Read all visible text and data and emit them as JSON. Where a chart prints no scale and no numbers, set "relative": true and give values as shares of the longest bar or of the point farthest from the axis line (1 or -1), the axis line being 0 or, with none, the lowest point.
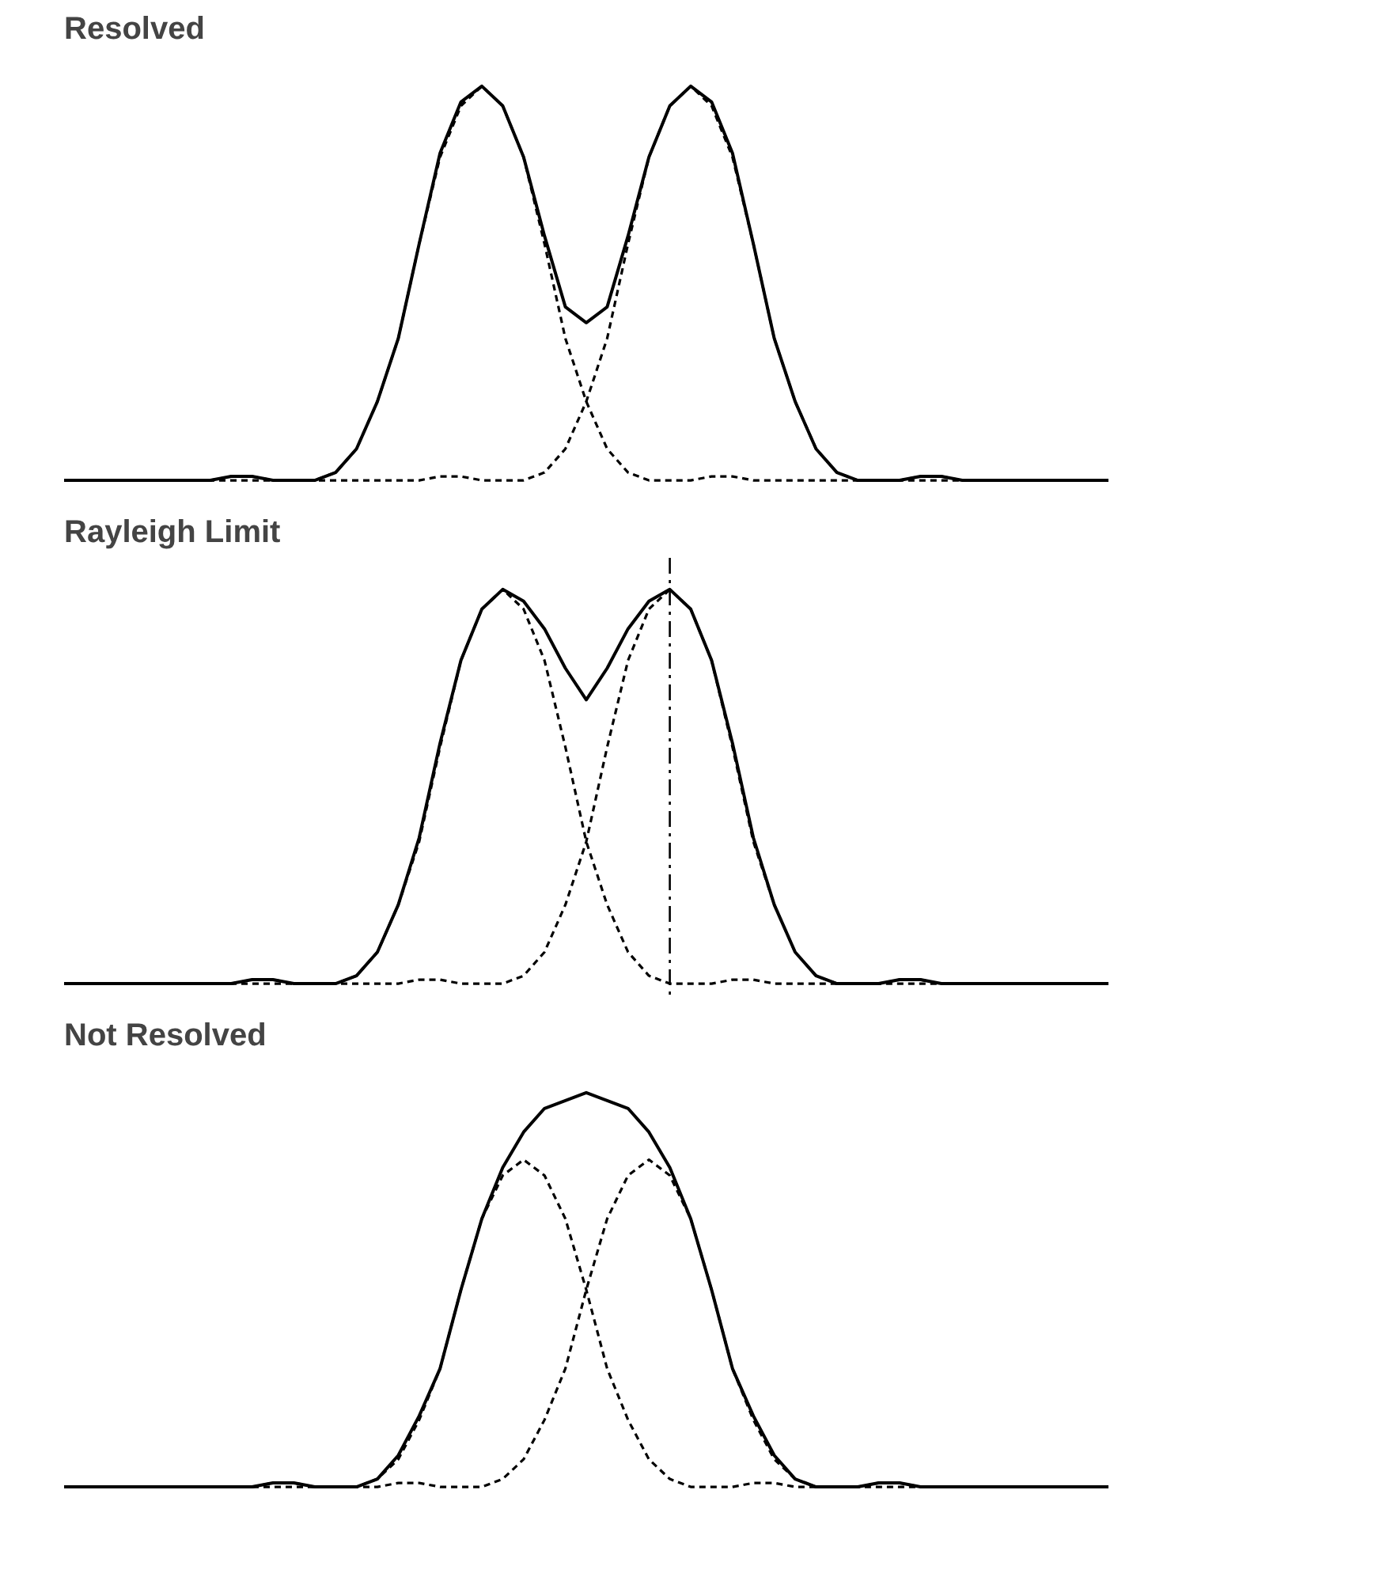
{
  "chart_data": [
    {
      "type": "line",
      "title": "Resolved",
      "relative": true,
      "tick_labels": false,
      "grid": false,
      "categories": [
        null,
        null,
        null,
        null,
        null,
        null,
        null,
        null,
        null,
        null,
        null,
        null,
        null,
        null,
        null,
        null,
        null,
        null,
        null,
        null,
        null,
        null,
        null,
        null,
        null,
        null,
        null,
        null,
        null,
        null,
        null,
        null,
        null,
        null,
        null,
        null,
        null,
        null,
        null,
        null,
        null,
        null,
        null,
        null,
        null,
        null,
        null,
        null,
        null,
        null,
        null
      ],
      "series": [
        {
          "color": "#000000",
          "line_style": "dashed",
          "values": [
            0,
            0,
            0,
            0,
            0,
            0,
            0,
            0,
            0.01,
            0.01,
            0,
            0,
            0,
            0.02,
            0.08,
            0.2,
            0.36,
            0.6,
            0.82,
            0.95,
            1,
            0.95,
            0.82,
            0.6,
            0.36,
            0.2,
            0.08,
            0.02,
            0,
            0,
            0,
            0.01,
            0.01,
            0,
            0,
            0,
            0,
            0,
            0,
            0,
            0,
            0,
            0,
            0,
            0,
            0,
            0,
            0,
            0,
            0,
            0
          ]
        },
        {
          "color": "#000000",
          "line_style": "dashed",
          "values": [
            0,
            0,
            0,
            0,
            0,
            0,
            0,
            0,
            0,
            0,
            0,
            0,
            0,
            0,
            0,
            0,
            0,
            0,
            0.01,
            0.01,
            0,
            0,
            0,
            0.02,
            0.08,
            0.2,
            0.36,
            0.6,
            0.82,
            0.95,
            1,
            0.95,
            0.82,
            0.6,
            0.36,
            0.2,
            0.08,
            0.02,
            0,
            0,
            0,
            0.01,
            0.01,
            0,
            0,
            0,
            0,
            0,
            0,
            0,
            0
          ]
        },
        {
          "color": "#000000",
          "line_style": "solid",
          "values": [
            0,
            0,
            0,
            0,
            0,
            0,
            0,
            0,
            0.01,
            0.01,
            0,
            0,
            0,
            0.02,
            0.08,
            0.2,
            0.36,
            0.6,
            0.83,
            0.96,
            1,
            0.95,
            0.82,
            0.62,
            0.44,
            0.4,
            0.44,
            0.62,
            0.82,
            0.95,
            1,
            0.96,
            0.83,
            0.6,
            0.36,
            0.2,
            0.08,
            0.02,
            0,
            0,
            0,
            0.01,
            0.01,
            0,
            0,
            0,
            0,
            0,
            0,
            0,
            0
          ]
        }
      ]
    },
    {
      "type": "line",
      "title": "Rayleigh Limit",
      "relative": true,
      "tick_labels": false,
      "grid": false,
      "categories": [
        null,
        null,
        null,
        null,
        null,
        null,
        null,
        null,
        null,
        null,
        null,
        null,
        null,
        null,
        null,
        null,
        null,
        null,
        null,
        null,
        null,
        null,
        null,
        null,
        null,
        null,
        null,
        null,
        null,
        null,
        null,
        null,
        null,
        null,
        null,
        null,
        null,
        null,
        null,
        null,
        null,
        null,
        null,
        null,
        null,
        null,
        null,
        null,
        null,
        null,
        null
      ],
      "ref_lines": [
        {
          "axis": "x",
          "color": "#000000",
          "line_style": "dashdot"
        }
      ],
      "series": [
        {
          "color": "#000000",
          "line_style": "dashed",
          "values": [
            0,
            0,
            0,
            0,
            0,
            0,
            0,
            0,
            0,
            0.01,
            0.01,
            0,
            0,
            0,
            0.02,
            0.08,
            0.2,
            0.36,
            0.6,
            0.82,
            0.95,
            1,
            0.95,
            0.82,
            0.6,
            0.36,
            0.2,
            0.08,
            0.02,
            0,
            0,
            0,
            0.01,
            0.01,
            0,
            0,
            0,
            0,
            0,
            0,
            0,
            0,
            0,
            0,
            0,
            0,
            0,
            0,
            0,
            0,
            0
          ]
        },
        {
          "color": "#000000",
          "line_style": "dashed",
          "values": [
            0,
            0,
            0,
            0,
            0,
            0,
            0,
            0,
            0,
            0,
            0,
            0,
            0,
            0,
            0,
            0,
            0,
            0.01,
            0.01,
            0,
            0,
            0,
            0.02,
            0.08,
            0.2,
            0.36,
            0.6,
            0.82,
            0.95,
            1,
            0.95,
            0.82,
            0.6,
            0.36,
            0.2,
            0.08,
            0.02,
            0,
            0,
            0,
            0.01,
            0.01,
            0,
            0,
            0,
            0,
            0,
            0,
            0,
            0,
            0
          ]
        },
        {
          "color": "#000000",
          "line_style": "solid",
          "values": [
            0,
            0,
            0,
            0,
            0,
            0,
            0,
            0,
            0,
            0.01,
            0.01,
            0,
            0,
            0,
            0.02,
            0.08,
            0.2,
            0.37,
            0.61,
            0.82,
            0.95,
            1,
            0.97,
            0.9,
            0.8,
            0.72,
            0.8,
            0.9,
            0.97,
            1,
            0.95,
            0.82,
            0.61,
            0.37,
            0.2,
            0.08,
            0.02,
            0,
            0,
            0,
            0.01,
            0.01,
            0,
            0,
            0,
            0,
            0,
            0,
            0,
            0,
            0
          ]
        }
      ]
    },
    {
      "type": "line",
      "title": "Not Resolved",
      "relative": true,
      "tick_labels": false,
      "grid": false,
      "categories": [
        null,
        null,
        null,
        null,
        null,
        null,
        null,
        null,
        null,
        null,
        null,
        null,
        null,
        null,
        null,
        null,
        null,
        null,
        null,
        null,
        null,
        null,
        null,
        null,
        null,
        null,
        null,
        null,
        null,
        null,
        null,
        null,
        null,
        null,
        null,
        null,
        null,
        null,
        null,
        null,
        null,
        null,
        null,
        null,
        null,
        null,
        null,
        null,
        null,
        null,
        null
      ],
      "series": [
        {
          "color": "#000000",
          "line_style": "dashed",
          "values": [
            0,
            0,
            0,
            0,
            0,
            0,
            0,
            0,
            0,
            0,
            0.01,
            0.01,
            0,
            0,
            0,
            0.02,
            0.07,
            0.17,
            0.3,
            0.5,
            0.68,
            0.79,
            0.83,
            0.79,
            0.68,
            0.5,
            0.3,
            0.17,
            0.07,
            0.02,
            0,
            0,
            0,
            0.01,
            0.01,
            0,
            0,
            0,
            0,
            0,
            0,
            0,
            0,
            0,
            0,
            0,
            0,
            0,
            0,
            0,
            0
          ]
        },
        {
          "color": "#000000",
          "line_style": "dashed",
          "values": [
            0,
            0,
            0,
            0,
            0,
            0,
            0,
            0,
            0,
            0,
            0,
            0,
            0,
            0,
            0,
            0,
            0.01,
            0.01,
            0,
            0,
            0,
            0.02,
            0.07,
            0.17,
            0.3,
            0.5,
            0.68,
            0.79,
            0.83,
            0.79,
            0.68,
            0.5,
            0.3,
            0.17,
            0.07,
            0.02,
            0,
            0,
            0,
            0.01,
            0.01,
            0,
            0,
            0,
            0,
            0,
            0,
            0,
            0,
            0,
            0
          ]
        },
        {
          "color": "#000000",
          "line_style": "solid",
          "values": [
            0,
            0,
            0,
            0,
            0,
            0,
            0,
            0,
            0,
            0,
            0.01,
            0.01,
            0,
            0,
            0,
            0.02,
            0.08,
            0.18,
            0.3,
            0.5,
            0.68,
            0.81,
            0.9,
            0.96,
            0.98,
            1,
            0.98,
            0.96,
            0.9,
            0.81,
            0.68,
            0.5,
            0.3,
            0.18,
            0.08,
            0.02,
            0,
            0,
            0,
            0.01,
            0.01,
            0,
            0,
            0,
            0,
            0,
            0,
            0,
            0,
            0,
            0
          ]
        }
      ]
    }
  ]
}
